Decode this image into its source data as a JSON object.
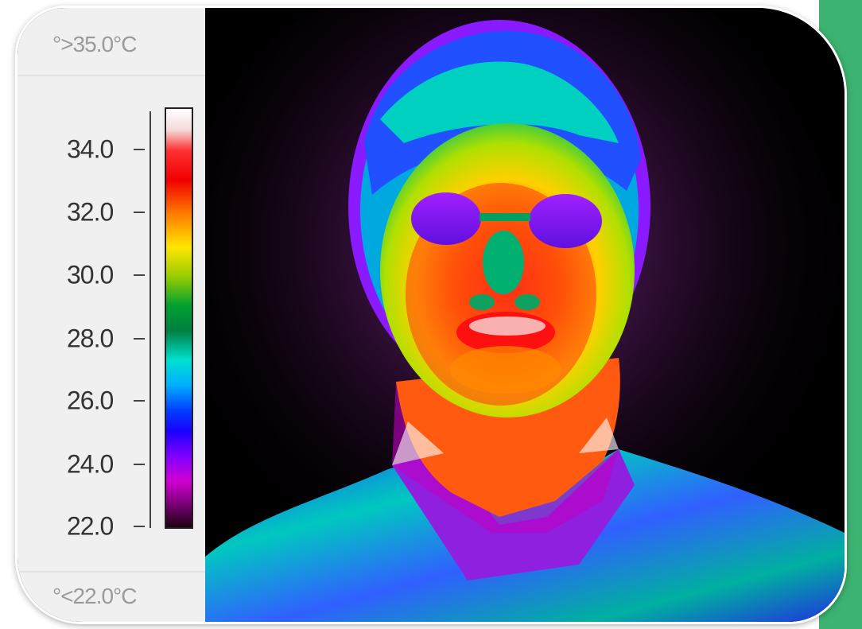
{
  "colors": {
    "background": "#000000",
    "panel": "#f0f0f0",
    "accent_strip": "#3cb371"
  },
  "scale": {
    "max_label": "°>35.0°C",
    "min_label": "°<22.0°C",
    "ticks": [
      "34.0",
      "32.0",
      "30.0",
      "28.0",
      "26.0",
      "24.0",
      "22.0"
    ]
  }
}
